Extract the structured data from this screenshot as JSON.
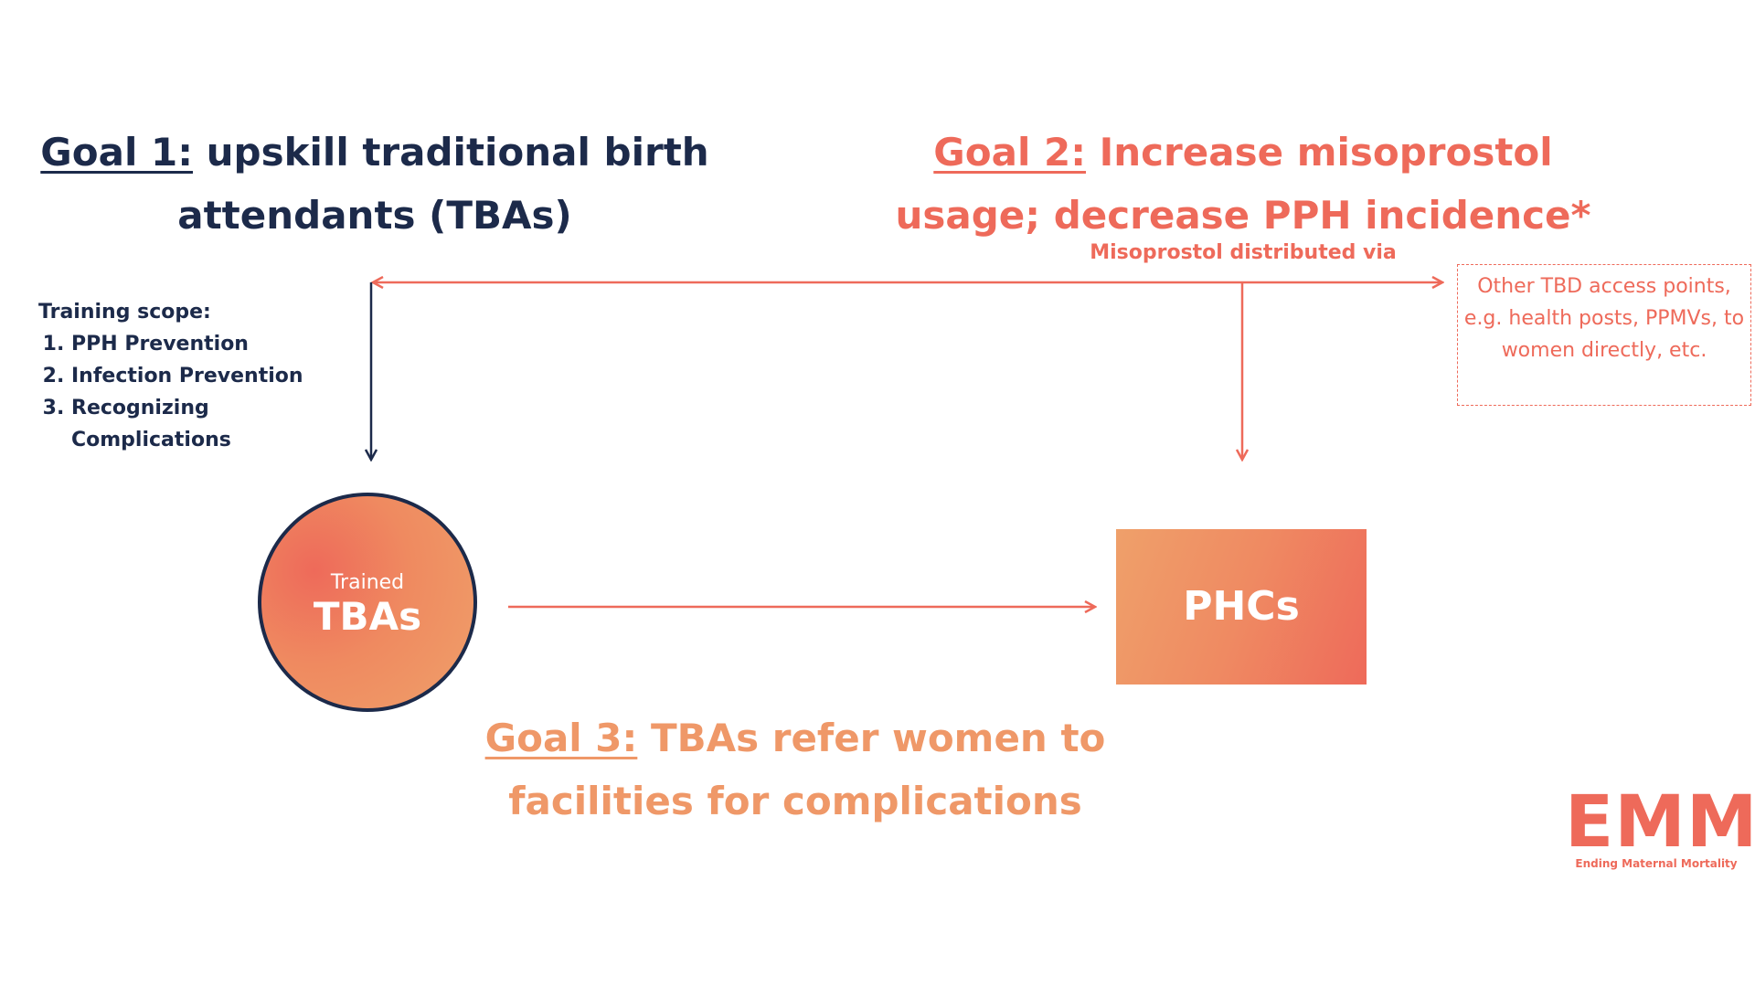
{
  "goals": {
    "goal1": {
      "key": "Goal 1:",
      "text": " upskill traditional birth attendants (TBAs)"
    },
    "goal2": {
      "key": "Goal 2:",
      "text": " Increase misoprostol usage; decrease PPH incidence*"
    },
    "goal3": {
      "key": "Goal 3:",
      "text": " TBAs refer women to facilities for complications"
    }
  },
  "distribution_label": "Misoprostol distributed via",
  "training": {
    "heading": "Training scope:",
    "items": [
      "PPH Prevention",
      "Infection Prevention",
      "Recognizing Complications"
    ]
  },
  "other_access_points": "Other TBD access points, e.g. health posts, PPMVs, to women directly, etc.",
  "nodes": {
    "tbas": {
      "small": "Trained",
      "big": "TBAs"
    },
    "phcs": {
      "label": "PHCs"
    }
  },
  "logo": {
    "mark": "EMM",
    "subtitle": "Ending Maternal Mortality"
  },
  "colors": {
    "navy": "#1c2a4a",
    "coral": "#ee6a5a",
    "peach": "#ef9868"
  }
}
